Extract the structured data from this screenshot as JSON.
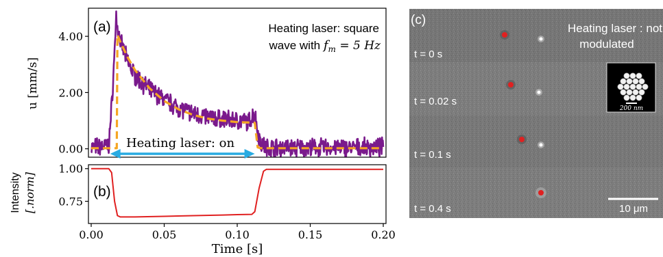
{
  "colors": {
    "measured": "#7a1a8c",
    "fit": "#f5a623",
    "arrow": "#29abe2",
    "intensity": "#e02020",
    "particle": "#e02020",
    "image_bg": "#7a7a7a"
  },
  "chart_data": [
    {
      "type": "line",
      "panel_label": "(a)",
      "title": "",
      "xlabel": "",
      "ylabel": "u [mm/s]",
      "xlim": [
        0.0,
        0.2
      ],
      "ylim": [
        -0.3,
        5.0
      ],
      "y_ticks": [
        0.0,
        2.0,
        4.0
      ],
      "y_tick_labels": [
        "0.00",
        "2.00",
        "4.00"
      ],
      "grid": false,
      "annotations": {
        "top_right_line1": "Heating laser: square",
        "top_right_line2_prefix": "wave with ",
        "top_right_formula": "f",
        "top_right_formula_sub": "m",
        "top_right_formula_rest": " = 5 Hz",
        "arrow_label": "Heating laser: on",
        "arrow_range": [
          0.013,
          0.112
        ]
      },
      "series": [
        {
          "style": "noisy",
          "x": [
            0.0,
            0.012,
            0.014,
            0.016,
            0.017,
            0.018,
            0.02,
            0.025,
            0.03,
            0.04,
            0.05,
            0.06,
            0.07,
            0.08,
            0.09,
            0.1,
            0.108,
            0.112,
            0.114,
            0.116,
            0.12,
            0.14,
            0.16,
            0.18,
            0.2
          ],
          "values": [
            0.05,
            0.1,
            1.5,
            3.4,
            4.8,
            4.3,
            3.8,
            3.1,
            2.6,
            2.1,
            1.75,
            1.45,
            1.25,
            1.12,
            1.05,
            1.0,
            0.95,
            1.3,
            0.6,
            0.2,
            0.05,
            0.03,
            0.04,
            0.03,
            0.05
          ]
        },
        {
          "style": "dashed",
          "x": [
            0.0,
            0.015,
            0.0175,
            0.018,
            0.02,
            0.025,
            0.03,
            0.04,
            0.05,
            0.06,
            0.07,
            0.08,
            0.09,
            0.1,
            0.11,
            0.112,
            0.114,
            0.116,
            0.14,
            0.16,
            0.18,
            0.2
          ],
          "values": [
            0.02,
            0.02,
            0.02,
            4.05,
            3.8,
            3.25,
            2.8,
            2.15,
            1.7,
            1.4,
            1.2,
            1.07,
            1.0,
            0.95,
            0.93,
            0.92,
            0.05,
            0.02,
            0.02,
            0.02,
            0.02,
            0.02
          ]
        }
      ]
    },
    {
      "type": "line",
      "panel_label": "(b)",
      "title": "",
      "xlabel": "Time [s]",
      "ylabel_line1": "Intensity",
      "ylabel_line2": "[.norm]",
      "xlim": [
        0.0,
        0.2
      ],
      "ylim": [
        0.58,
        1.03
      ],
      "x_ticks": [
        0.0,
        0.05,
        0.1,
        0.15,
        0.2
      ],
      "x_tick_labels": [
        "0.00",
        "0.05",
        "0.10",
        "0.15",
        "0.20"
      ],
      "y_ticks": [
        0.75,
        1.0
      ],
      "y_tick_labels": [
        "0.75",
        "1.00"
      ],
      "grid": false,
      "series": [
        {
          "x": [
            0.0,
            0.012,
            0.014,
            0.016,
            0.018,
            0.02,
            0.03,
            0.05,
            0.07,
            0.09,
            0.1,
            0.11,
            0.112,
            0.115,
            0.118,
            0.12,
            0.15,
            0.2
          ],
          "values": [
            1.0,
            1.0,
            0.97,
            0.75,
            0.64,
            0.63,
            0.63,
            0.635,
            0.64,
            0.645,
            0.648,
            0.65,
            0.67,
            0.85,
            0.98,
            0.995,
            0.995,
            0.995
          ]
        }
      ]
    }
  ],
  "panel_c": {
    "label": "(c)",
    "caption_line1": "Heating laser : not",
    "caption_line2": "modulated",
    "frames": [
      "t = 0 s",
      "t = 0.02 s",
      "t = 0.1 s",
      "t = 0.4 s"
    ],
    "inset_scale": "200 nm",
    "scale_bar": "10 μm"
  }
}
